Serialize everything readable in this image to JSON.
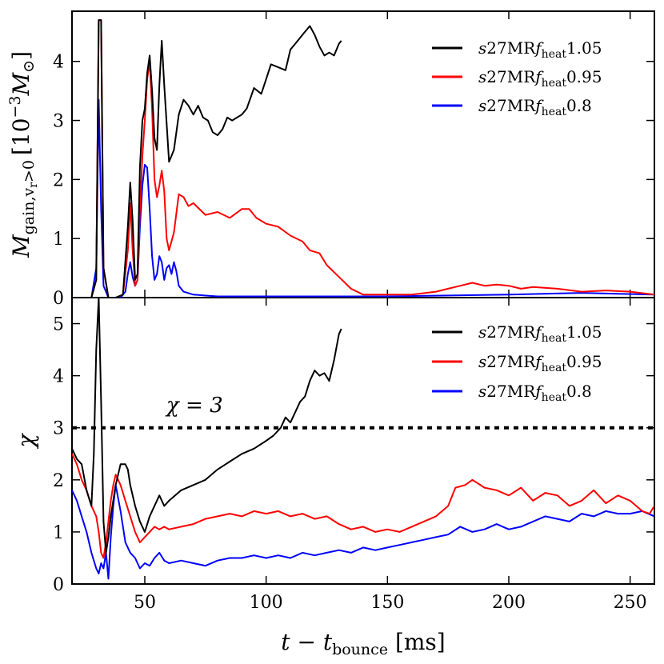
{
  "chart_data": [
    {
      "panel": "top",
      "type": "line",
      "ylabel": "M_gain,v_r>0 [10^-3 M_⊙]",
      "xlim": [
        20,
        260
      ],
      "ylim": [
        0,
        4.85
      ],
      "yticks": [
        0,
        1,
        2,
        3,
        4
      ],
      "ytick_labels": [
        "0",
        "1",
        "2",
        "3",
        "4"
      ],
      "legend_position": "top-right",
      "series": [
        {
          "name": "s27MRf_heat1.05",
          "legend_label": "s27MRfheat1.05",
          "color": "#000000",
          "x": [
            20,
            28,
            30,
            31,
            32,
            33,
            35,
            38,
            41,
            43,
            44,
            45,
            46,
            47,
            48,
            49,
            50,
            51,
            52,
            53,
            54,
            55,
            56,
            57,
            58,
            60,
            62,
            64,
            66,
            68,
            70,
            72,
            74,
            76,
            78,
            80,
            82,
            84,
            86,
            88,
            90,
            92,
            95,
            98,
            100,
            102,
            105,
            108,
            110,
            112,
            114,
            116,
            118,
            120,
            122,
            124,
            126,
            128,
            130,
            131
          ],
          "y": [
            0,
            0,
            0.3,
            4.7,
            4.7,
            0.5,
            0,
            0,
            0.05,
            1.2,
            1.95,
            1.3,
            0.3,
            0.4,
            2.2,
            3.0,
            3.2,
            3.8,
            4.1,
            3.5,
            2.7,
            2.5,
            3.6,
            4.35,
            3.6,
            2.3,
            2.5,
            3.1,
            3.35,
            3.25,
            3.1,
            3.25,
            3.05,
            3.0,
            2.8,
            2.75,
            2.85,
            3.05,
            3.0,
            3.05,
            3.1,
            3.2,
            3.55,
            3.45,
            3.7,
            3.95,
            3.9,
            3.85,
            4.2,
            4.3,
            4.4,
            4.5,
            4.6,
            4.45,
            4.25,
            4.1,
            4.15,
            4.1,
            4.3,
            4.35
          ]
        },
        {
          "name": "s27MRf_heat0.95",
          "legend_label": "s27MRfheat0.95",
          "color": "#ff0000",
          "x": [
            20,
            28,
            30,
            31,
            32,
            33,
            35,
            38,
            41,
            43,
            44,
            45,
            46,
            47,
            48,
            49,
            50,
            51,
            52,
            53,
            54,
            55,
            56,
            57,
            58,
            59,
            60,
            62,
            64,
            66,
            68,
            70,
            75,
            80,
            85,
            90,
            93,
            96,
            100,
            105,
            110,
            115,
            118,
            122,
            125,
            130,
            135,
            140,
            150,
            160,
            170,
            175,
            180,
            185,
            190,
            195,
            200,
            205,
            210,
            220,
            230,
            240,
            250,
            260
          ],
          "y": [
            0,
            0,
            0.3,
            4.7,
            4.7,
            0.5,
            0,
            0,
            0.05,
            0.8,
            1.6,
            0.8,
            0.2,
            0.3,
            1.5,
            2.4,
            3.0,
            3.7,
            4.0,
            3.2,
            2.0,
            1.7,
            1.9,
            2.15,
            1.8,
            1.0,
            0.8,
            1.1,
            1.75,
            1.7,
            1.55,
            1.6,
            1.4,
            1.45,
            1.35,
            1.5,
            1.5,
            1.35,
            1.25,
            1.2,
            1.05,
            0.95,
            0.8,
            0.75,
            0.55,
            0.35,
            0.15,
            0.05,
            0.05,
            0.05,
            0.1,
            0.15,
            0.2,
            0.25,
            0.2,
            0.22,
            0.2,
            0.15,
            0.18,
            0.15,
            0.1,
            0.12,
            0.1,
            0.05
          ]
        },
        {
          "name": "s27MRf_heat0.8",
          "legend_label": "s27MRfheat0.8",
          "color": "#0000ff",
          "x": [
            20,
            28,
            30,
            31,
            32,
            33,
            35,
            40,
            42,
            43,
            44,
            45,
            46,
            47,
            48,
            49,
            50,
            51,
            52,
            53,
            54,
            55,
            56,
            57,
            58,
            59,
            60,
            61,
            62,
            63,
            64,
            66,
            70,
            80,
            100,
            150,
            200,
            230,
            260
          ],
          "y": [
            0,
            0,
            0.5,
            3.35,
            1.5,
            0.2,
            0,
            0,
            0.1,
            0.4,
            0.6,
            0.35,
            0.2,
            0.3,
            1.2,
            1.9,
            2.25,
            2.2,
            1.5,
            0.7,
            0.3,
            0.4,
            0.7,
            0.6,
            0.3,
            0.5,
            0.55,
            0.4,
            0.6,
            0.45,
            0.2,
            0.1,
            0.05,
            0.02,
            0.02,
            0.02,
            0.05,
            0.08,
            0.05
          ]
        }
      ]
    },
    {
      "panel": "bottom",
      "type": "line",
      "xlabel": "t − t_bounce [ms]",
      "ylabel": "χ",
      "xlim": [
        20,
        260
      ],
      "ylim": [
        0,
        5.5
      ],
      "xticks": [
        50,
        100,
        150,
        200,
        250
      ],
      "xtick_labels": [
        "50",
        "100",
        "150",
        "200",
        "250"
      ],
      "yticks": [
        0,
        1,
        2,
        3,
        4,
        5
      ],
      "ytick_labels": [
        "0",
        "1",
        "2",
        "3",
        "4",
        "5"
      ],
      "legend_position": "top-right",
      "reference_line": {
        "y": 3,
        "style": "dotted",
        "label": "χ = 3"
      },
      "series": [
        {
          "name": "s27MRf_heat1.05",
          "legend_label": "s27MRfheat1.05",
          "color": "#000000",
          "x": [
            20,
            22,
            24,
            26,
            28,
            29,
            30,
            31,
            32,
            33,
            34,
            35,
            36,
            38,
            40,
            42,
            43,
            44,
            46,
            48,
            50,
            52,
            54,
            56,
            58,
            60,
            65,
            70,
            75,
            80,
            85,
            90,
            95,
            100,
            103,
            106,
            108,
            110,
            112,
            114,
            116,
            118,
            120,
            122,
            124,
            126,
            128,
            130,
            131
          ],
          "y": [
            2.6,
            2.4,
            2.3,
            1.8,
            1.5,
            2.5,
            4.5,
            5.5,
            3.5,
            1.2,
            0.6,
            0.9,
            1.3,
            1.9,
            2.3,
            2.3,
            2.2,
            1.9,
            1.5,
            1.2,
            1.0,
            1.3,
            1.5,
            1.7,
            1.5,
            1.6,
            1.8,
            1.9,
            2.0,
            2.2,
            2.35,
            2.5,
            2.6,
            2.75,
            2.85,
            3.0,
            3.2,
            3.1,
            3.3,
            3.5,
            3.6,
            3.9,
            4.1,
            4.0,
            4.05,
            3.9,
            4.3,
            4.8,
            4.9
          ]
        },
        {
          "name": "s27MRf_heat0.95",
          "legend_label": "s27MRfheat0.95",
          "color": "#ff0000",
          "x": [
            20,
            22,
            24,
            26,
            28,
            30,
            31,
            32,
            33,
            34,
            35,
            36,
            37,
            38,
            40,
            42,
            44,
            46,
            48,
            50,
            52,
            54,
            56,
            58,
            60,
            65,
            70,
            75,
            80,
            85,
            90,
            95,
            100,
            105,
            110,
            115,
            120,
            125,
            130,
            135,
            140,
            145,
            150,
            155,
            160,
            165,
            170,
            175,
            178,
            182,
            185,
            190,
            195,
            200,
            205,
            210,
            215,
            220,
            225,
            230,
            235,
            240,
            245,
            250,
            255,
            258,
            260
          ],
          "y": [
            2.5,
            2.3,
            2.0,
            1.8,
            1.5,
            1.3,
            1.0,
            0.6,
            0.5,
            0.8,
            1.2,
            1.6,
            1.9,
            2.1,
            1.9,
            1.6,
            1.3,
            1.0,
            0.8,
            0.9,
            1.0,
            1.1,
            1.05,
            1.1,
            1.05,
            1.1,
            1.15,
            1.25,
            1.3,
            1.35,
            1.3,
            1.4,
            1.35,
            1.4,
            1.3,
            1.35,
            1.25,
            1.3,
            1.15,
            1.05,
            1.1,
            1.0,
            1.05,
            1.0,
            1.1,
            1.2,
            1.3,
            1.5,
            1.85,
            1.9,
            2.0,
            1.85,
            1.8,
            1.7,
            1.85,
            1.6,
            1.75,
            1.7,
            1.5,
            1.6,
            1.8,
            1.55,
            1.7,
            1.6,
            1.4,
            1.35,
            1.5
          ]
        },
        {
          "name": "s27MRf_heat0.8",
          "legend_label": "s27MRfheat0.8",
          "color": "#0000ff",
          "x": [
            20,
            22,
            24,
            26,
            28,
            30,
            31,
            32,
            33,
            34,
            35,
            36,
            37,
            38,
            40,
            42,
            44,
            46,
            48,
            50,
            52,
            54,
            56,
            58,
            60,
            65,
            70,
            75,
            80,
            85,
            90,
            95,
            100,
            105,
            110,
            115,
            120,
            125,
            130,
            135,
            140,
            145,
            150,
            155,
            160,
            165,
            170,
            175,
            180,
            185,
            190,
            195,
            200,
            205,
            210,
            215,
            220,
            225,
            230,
            235,
            240,
            245,
            250,
            255,
            260
          ],
          "y": [
            1.8,
            1.6,
            1.3,
            1.0,
            0.6,
            0.3,
            0.2,
            0.4,
            0.3,
            0.6,
            0.1,
            0.9,
            1.5,
            1.9,
            1.4,
            0.8,
            0.6,
            0.5,
            0.3,
            0.4,
            0.35,
            0.5,
            0.6,
            0.45,
            0.4,
            0.45,
            0.4,
            0.35,
            0.45,
            0.5,
            0.5,
            0.55,
            0.5,
            0.55,
            0.5,
            0.6,
            0.55,
            0.6,
            0.65,
            0.6,
            0.7,
            0.65,
            0.7,
            0.75,
            0.8,
            0.85,
            0.9,
            0.95,
            1.1,
            1.0,
            1.05,
            1.15,
            1.05,
            1.1,
            1.2,
            1.3,
            1.25,
            1.2,
            1.35,
            1.3,
            1.4,
            1.35,
            1.35,
            1.4,
            1.3
          ]
        }
      ]
    }
  ],
  "axes": {
    "top_ylabel_main": "M",
    "top_ylabel_sub": "gain,v",
    "top_ylabel_subsub": "r",
    "top_ylabel_tail": ">0",
    "top_ylabel_unit_pre": "[10",
    "top_ylabel_unit_exp": "−3",
    "top_ylabel_unit_sym": "M",
    "top_ylabel_unit_sun": "⊙",
    "top_ylabel_unit_close": "]",
    "bottom_ylabel": "χ",
    "xlabel_t": "t",
    "xlabel_minus": " − ",
    "xlabel_tb": "t",
    "xlabel_tb_sub": "bounce",
    "xlabel_unit": " [ms]"
  },
  "legend": {
    "prefix_s": "s",
    "prefix_model": "27MR",
    "f": "f",
    "f_sub": "heat",
    "values": [
      "1.05",
      "0.95",
      "0.8"
    ]
  },
  "annotation": {
    "text": "χ = 3"
  }
}
